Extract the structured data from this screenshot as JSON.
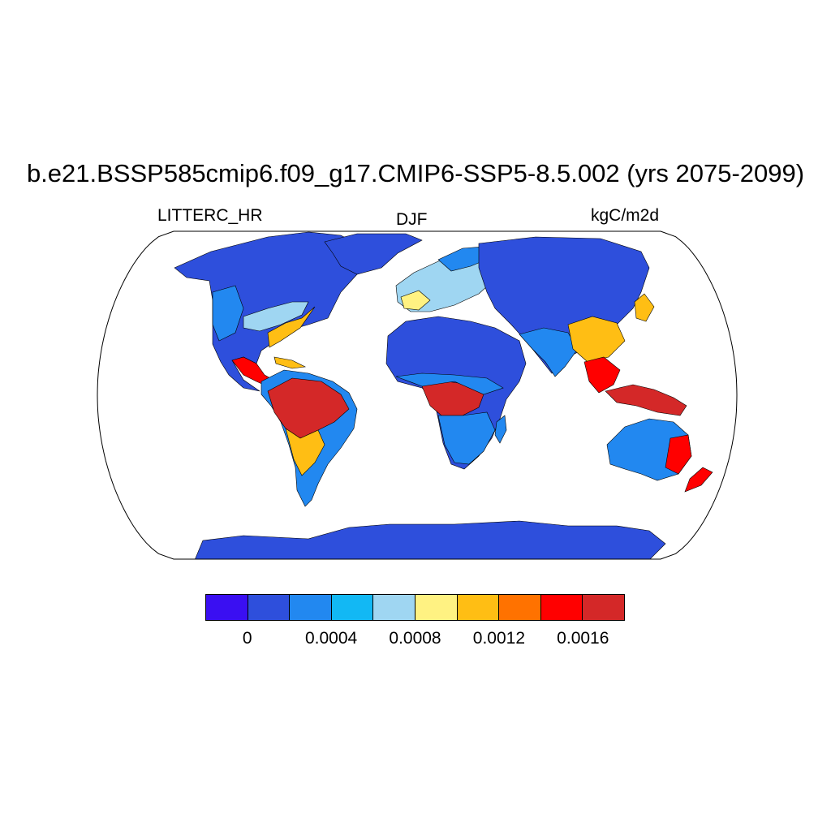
{
  "header": {
    "title": "b.e21.BSSP585cmip6.f09_g17.CMIP6-SSP5-8.5.002 (yrs 2075-2099)",
    "left_label": "LITTERC_HR",
    "center_label": "DJF",
    "right_label": "kgC/m2d"
  },
  "colorbar": {
    "colors": [
      "#3a0ff2",
      "#2e4fdc",
      "#2288f0",
      "#12b8f4",
      "#9fd6f2",
      "#fff282",
      "#ffbe14",
      "#ff7200",
      "#ff0000",
      "#d42828"
    ],
    "tick_labels": [
      "0",
      "0.0004",
      "0.0008",
      "0.0012",
      "0.0016"
    ]
  },
  "map": {
    "projection": "Robinson",
    "ocean_color": "#ffffff",
    "colors": {
      "low": "#2e4fdc",
      "low_mid": "#2288f0",
      "mid": "#12b8f4",
      "light": "#9fd6f2",
      "yellow": "#fff282",
      "orange": "#ffbe14",
      "dark_orange": "#ff7200",
      "red": "#ff0000",
      "dark_red": "#d42828"
    }
  }
}
